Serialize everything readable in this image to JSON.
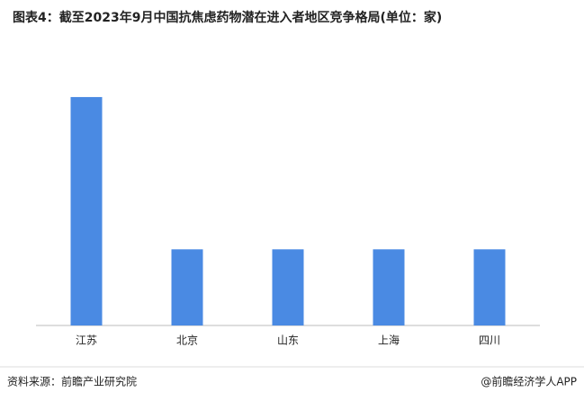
{
  "chart_data": {
    "type": "bar",
    "title": "图表4：截至2023年9月中国抗焦虑药物潜在进入者地区竞争格局(单位：家)",
    "categories": [
      "江苏",
      "北京",
      "山东",
      "上海",
      "四川"
    ],
    "values": [
      3,
      1,
      1,
      1,
      1
    ],
    "color": "#4a8ae3",
    "ylim": [
      0,
      3.2
    ],
    "source": "资料来源：前瞻产业研究院",
    "credit": "@前瞻经济学人APP"
  }
}
